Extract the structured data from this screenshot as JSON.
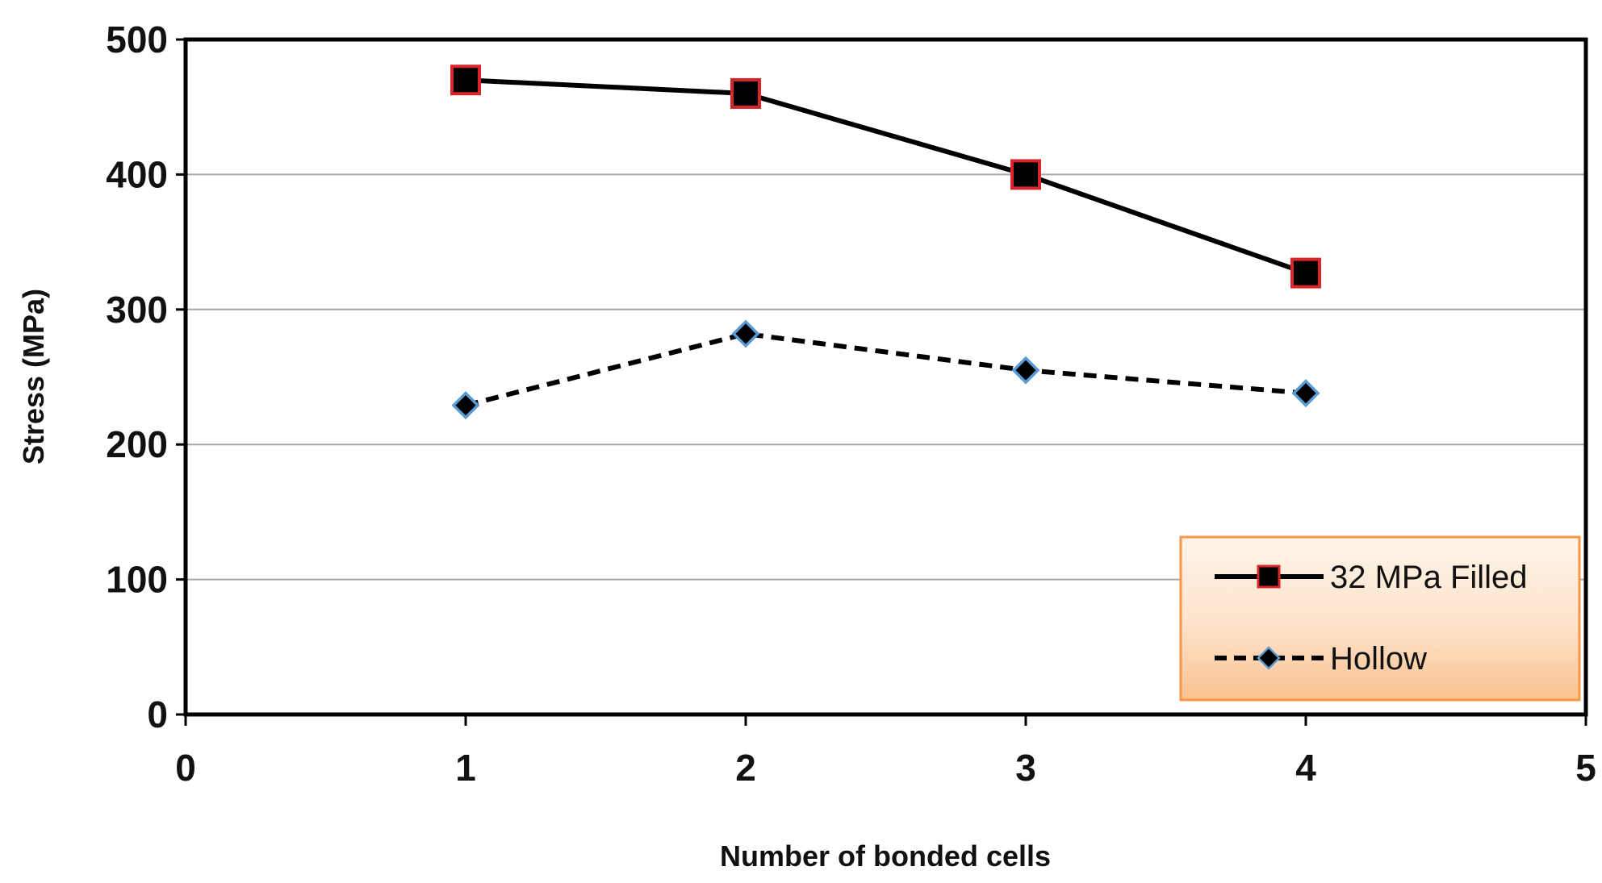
{
  "chart_data": {
    "type": "line",
    "title": "",
    "xlabel": "Number of bonded cells",
    "ylabel": "Stress (MPa)",
    "xlim": [
      0,
      5
    ],
    "ylim": [
      0,
      500
    ],
    "x_ticks": [
      "0",
      "1",
      "2",
      "3",
      "4",
      "5"
    ],
    "y_ticks": [
      "0",
      "100",
      "200",
      "300",
      "400",
      "500"
    ],
    "grid": "horizontal",
    "legend_position": "bottom-right",
    "series": [
      {
        "name": "32 MPa Filled",
        "x": [
          1,
          2,
          3,
          4
        ],
        "values": [
          470,
          460,
          400,
          327
        ],
        "line_style": "solid",
        "marker": "square",
        "line_color": "#000000",
        "marker_fill": "#000000",
        "marker_edge": "#d9262b"
      },
      {
        "name": "Hollow",
        "x": [
          1,
          2,
          3,
          4
        ],
        "values": [
          229,
          282,
          255,
          238
        ],
        "line_style": "dashed",
        "marker": "diamond",
        "line_color": "#000000",
        "marker_fill": "#000000",
        "marker_edge": "#5b9bd5"
      }
    ],
    "colors": {
      "grid": "#a6a6a6",
      "axis": "#000000",
      "legend_fill": "#fcd5b4",
      "legend_border": "#f79646"
    }
  }
}
